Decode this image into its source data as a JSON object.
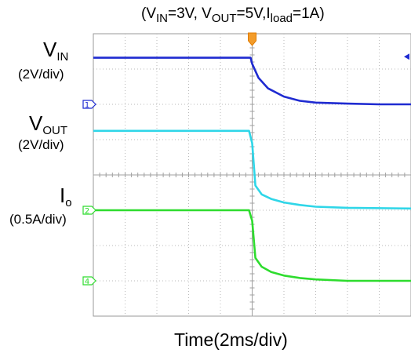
{
  "chart_data": {
    "type": "line",
    "title": {
      "parts": [
        "(V",
        "IN",
        "=3V, V",
        "OUT",
        "=5V,I",
        "load",
        "=1A)"
      ]
    },
    "xlabel": "Time(2ms/div)",
    "x_unit": "div",
    "xlim": [
      0,
      10
    ],
    "ylim": [
      -4,
      4
    ],
    "grid": true,
    "trigger_x": 5.0,
    "series": [
      {
        "id": "vin",
        "label_main": "V",
        "label_sub": "IN",
        "scale": "(2V/div)",
        "color": "#1f2bd1",
        "marker_label": "1",
        "ref_level": 2.0,
        "x": [
          0,
          4.95,
          5.0,
          5.2,
          5.5,
          6.0,
          6.5,
          7.0,
          8.0,
          9.0,
          10.0
        ],
        "y": [
          3.32,
          3.32,
          3.15,
          2.75,
          2.45,
          2.22,
          2.1,
          2.05,
          2.02,
          2.0,
          2.0
        ]
      },
      {
        "id": "vout",
        "label_main": "V",
        "label_sub": "OUT",
        "scale": "(2V/div)",
        "color": "#2fd6e8",
        "marker_label": "",
        "ref_level": 0.0,
        "x": [
          0,
          4.9,
          5.0,
          5.1,
          5.3,
          5.6,
          6.0,
          6.5,
          7.0,
          8.0,
          10.0
        ],
        "y": [
          1.25,
          1.25,
          0.9,
          -0.3,
          -0.55,
          -0.68,
          -0.78,
          -0.85,
          -0.9,
          -0.93,
          -0.95
        ]
      },
      {
        "id": "io",
        "label_main": "I",
        "label_sub": "o",
        "scale": "(0.5A/div)",
        "color": "#2edc2e",
        "marker_label": "2",
        "ref_level": -1.0,
        "x": [
          0,
          4.9,
          5.0,
          5.1,
          5.3,
          5.6,
          6.0,
          6.5,
          7.0,
          8.0,
          10.0
        ],
        "y": [
          -1.0,
          -1.0,
          -1.3,
          -2.35,
          -2.6,
          -2.75,
          -2.85,
          -2.92,
          -2.96,
          -3.0,
          -3.0
        ]
      }
    ],
    "extra_marker": {
      "label": "4",
      "color": "#2edc2e",
      "level": -3.0
    }
  }
}
